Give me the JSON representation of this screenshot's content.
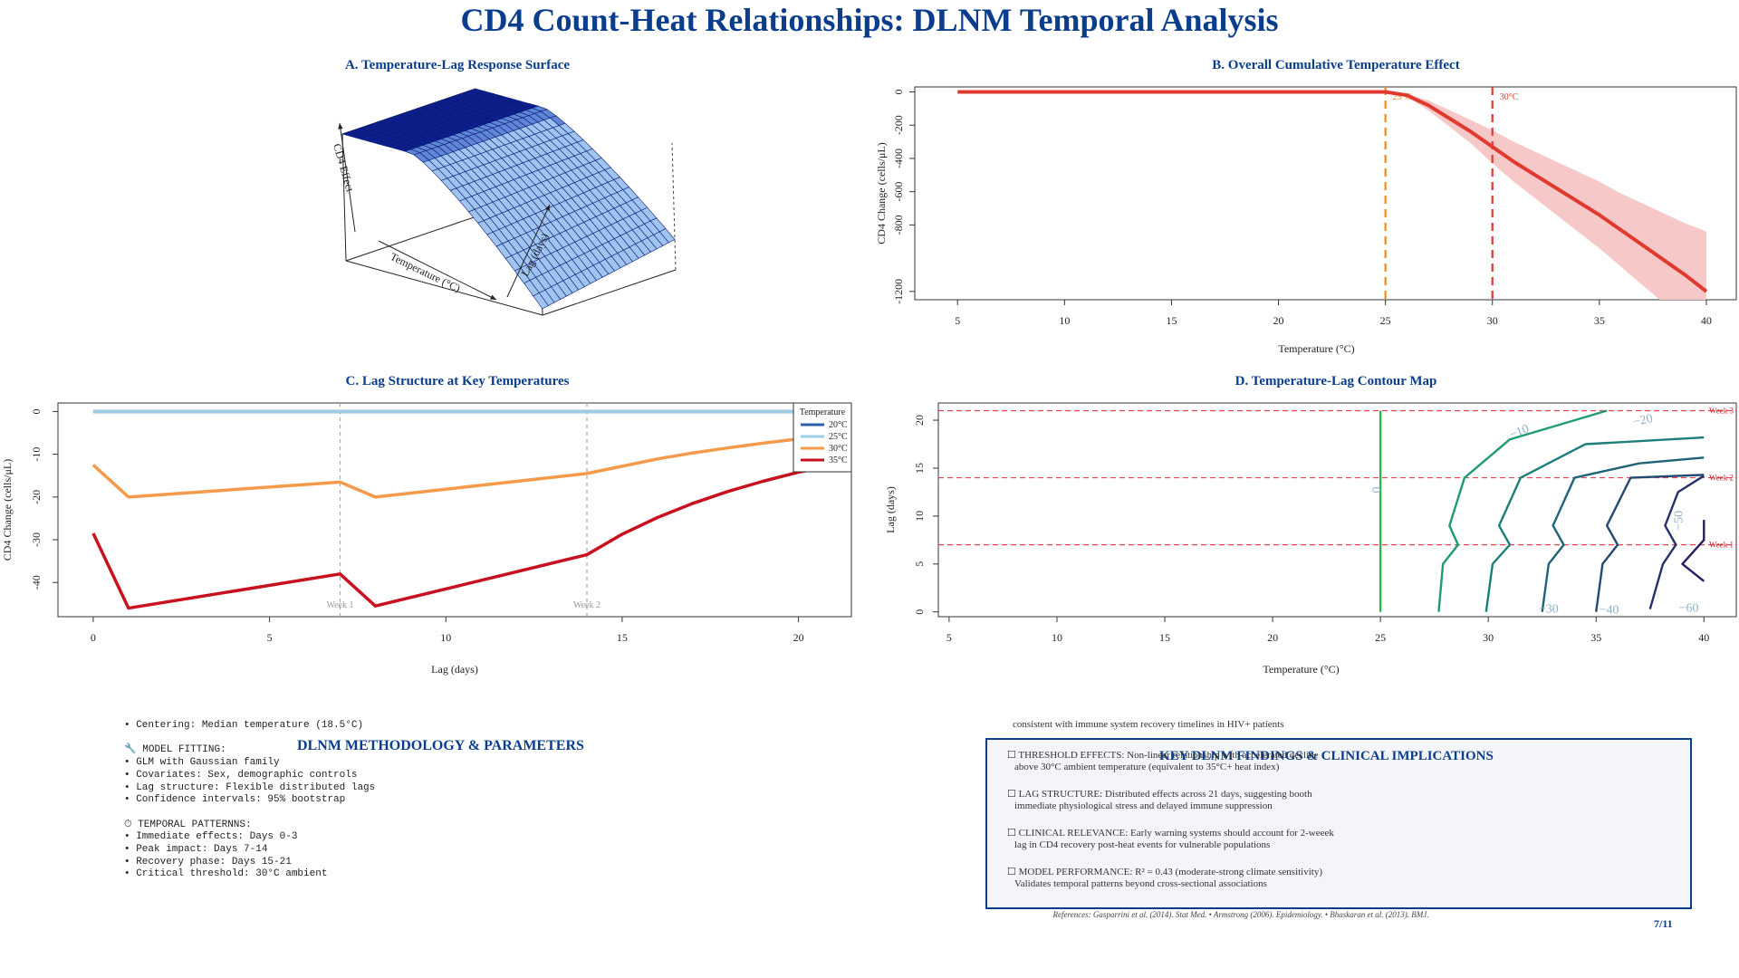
{
  "title": "CD4 Count-Heat Relationships: DLNM Temporal Analysis",
  "colors": {
    "title": "#0a3d8c",
    "cumulative_line": "#e03a2f",
    "cumulative_band": "#f6c8c8",
    "threshold_25": "#f08a1c",
    "threshold_30": "#e03a2f",
    "t20": "#2c5fa8",
    "t25": "#9ecde6",
    "t30": "#f59a4a",
    "t35": "#c8101e"
  },
  "panels": {
    "a": {
      "title": "A. Temperature-Lag Response Surface",
      "xlabel": "Temperature (°C)",
      "ylabel": "Lag (days)",
      "zlabel": "CD4 Effect"
    },
    "b": {
      "title": "B. Overall Cumulative Temperature Effect"
    },
    "c": {
      "title": "C. Lag Structure at Key Temperatures",
      "legend_title": "Temperature"
    },
    "d": {
      "title": "D. Temperature-Lag Contour Map"
    }
  },
  "chart_data": [
    {
      "id": "panel-a",
      "type": "surface",
      "title": "A. Temperature-Lag Response Surface",
      "xlabel": "Temperature (°C)",
      "ylabel": "Lag (days)",
      "zlabel": "CD4 Effect"
    },
    {
      "id": "panel-b",
      "type": "line",
      "title": "B. Overall Cumulative Temperature Effect",
      "xlabel": "Temperature (°C)",
      "ylabel": "CD4 Change (cells/μL)",
      "xlim": [
        5,
        40
      ],
      "ylim": [
        -1250,
        30
      ],
      "xticks": [
        5,
        10,
        15,
        20,
        25,
        30,
        35,
        40
      ],
      "yticks": [
        0,
        -200,
        -400,
        -600,
        -800,
        -1200
      ],
      "x": [
        5,
        10,
        15,
        20,
        25,
        26,
        27,
        28,
        29,
        30,
        31,
        32,
        33,
        34,
        35,
        36,
        37,
        38,
        39,
        40
      ],
      "y": [
        0,
        0,
        0,
        0,
        0,
        -20,
        -80,
        -160,
        -240,
        -330,
        -420,
        -500,
        -580,
        -660,
        -740,
        -830,
        -920,
        -1010,
        -1100,
        -1200
      ],
      "upper": [
        0,
        0,
        0,
        0,
        0,
        -10,
        -50,
        -110,
        -170,
        -230,
        -300,
        -360,
        -420,
        -480,
        -540,
        -610,
        -670,
        -730,
        -790,
        -840
      ],
      "lower": [
        0,
        0,
        0,
        0,
        0,
        -30,
        -110,
        -210,
        -310,
        -430,
        -540,
        -640,
        -740,
        -840,
        -940,
        -1050,
        -1160,
        -1270,
        -1380,
        -1500
      ],
      "vlines": [
        {
          "x": 25,
          "label": "25°C",
          "color": "#f08a1c"
        },
        {
          "x": 30,
          "label": "30°C",
          "color": "#e03a2f"
        }
      ]
    },
    {
      "id": "panel-c",
      "type": "line",
      "title": "C. Lag Structure at Key Temperatures",
      "xlabel": "Lag (days)",
      "ylabel": "CD4 Change (cells/μL)",
      "xlim": [
        -1,
        21.5
      ],
      "ylim": [
        -48,
        2
      ],
      "xticks": [
        0,
        5,
        10,
        15,
        20
      ],
      "yticks": [
        0,
        -10,
        -20,
        -30,
        -40
      ],
      "legend_position": "top-right",
      "vlines": [
        {
          "x": 7,
          "label": "Week 1"
        },
        {
          "x": 14,
          "label": "Week 2"
        }
      ],
      "series": [
        {
          "name": "20°C",
          "color": "#2c5fa8",
          "x": [
            0,
            21
          ],
          "y": [
            0,
            0
          ]
        },
        {
          "name": "25°C",
          "color": "#9ecde6",
          "x": [
            0,
            21
          ],
          "y": [
            0,
            0
          ]
        },
        {
          "name": "30°C",
          "color": "#f59a4a",
          "x": [
            0,
            1,
            7,
            8,
            14,
            15,
            16,
            17,
            18,
            19,
            20,
            21
          ],
          "y": [
            -12.5,
            -20,
            -16.5,
            -20,
            -14.5,
            -12.8,
            -11.1,
            -9.7,
            -8.5,
            -7.4,
            -6.4,
            -5.5
          ]
        },
        {
          "name": "35°C",
          "color": "#c8101e",
          "x": [
            0,
            1,
            7,
            8,
            14,
            15,
            16,
            17,
            18,
            19,
            20,
            21
          ],
          "y": [
            -28.5,
            -46,
            -38,
            -45.5,
            -33.5,
            -28.7,
            -24.8,
            -21.5,
            -18.7,
            -16.3,
            -14.2,
            -12.6
          ]
        }
      ]
    },
    {
      "id": "panel-d",
      "type": "contour",
      "title": "D. Temperature-Lag Contour Map",
      "xlabel": "Temperature (°C)",
      "ylabel": "Lag (days)",
      "xlim": [
        4.5,
        41.5
      ],
      "ylim": [
        -0.5,
        21.8
      ],
      "xticks": [
        5,
        10,
        15,
        20,
        25,
        30,
        35,
        40
      ],
      "yticks": [
        0,
        5,
        10,
        15,
        20
      ],
      "hlines": [
        {
          "y": 7,
          "label": "Week 1"
        },
        {
          "y": 14,
          "label": "Week 2"
        },
        {
          "y": 21,
          "label": "Week 3"
        }
      ],
      "contours": [
        {
          "level": 0,
          "label": "0",
          "color": "#2fb05a",
          "points": [
            [
              25,
              0
            ],
            [
              25,
              21
            ]
          ]
        },
        {
          "level": -10,
          "label": "−10",
          "color": "#1f9a72",
          "points": [
            [
              27.7,
              0
            ],
            [
              27.9,
              5
            ],
            [
              28.6,
              7
            ],
            [
              28.2,
              9
            ],
            [
              28.9,
              14
            ],
            [
              31,
              18
            ],
            [
              35.5,
              21
            ]
          ]
        },
        {
          "level": -20,
          "label": "−20",
          "color": "#1c7f7a",
          "points": [
            [
              29.9,
              0
            ],
            [
              30.2,
              5
            ],
            [
              31,
              7
            ],
            [
              30.5,
              9
            ],
            [
              31.5,
              14
            ],
            [
              34.5,
              17.5
            ],
            [
              40,
              18.2
            ]
          ]
        },
        {
          "level": -30,
          "label": "−30",
          "color": "#1e6478",
          "points": [
            [
              32.5,
              0
            ],
            [
              32.8,
              5
            ],
            [
              33.5,
              7
            ],
            [
              33,
              9
            ],
            [
              34,
              14
            ],
            [
              37,
              15.5
            ],
            [
              40,
              16.1
            ]
          ]
        },
        {
          "level": -40,
          "label": "−40",
          "color": "#234a72",
          "points": [
            [
              35,
              0
            ],
            [
              35.3,
              5
            ],
            [
              36,
              7
            ],
            [
              35.5,
              9
            ],
            [
              36.6,
              14
            ],
            [
              40,
              14.3
            ]
          ]
        },
        {
          "level": -50,
          "label": "−50",
          "color": "#28306a",
          "points": [
            [
              37.5,
              0.3
            ],
            [
              38.1,
              5
            ],
            [
              38.7,
              7
            ],
            [
              38.2,
              9
            ],
            [
              38.8,
              12.5
            ],
            [
              40,
              14.2
            ]
          ]
        },
        {
          "level": -60,
          "label": "−60",
          "color": "#2a1c5e",
          "points": [
            [
              40,
              3.2
            ],
            [
              39,
              5
            ],
            [
              40,
              7.5
            ],
            [
              40,
              8.3
            ],
            [
              40,
              9.6
            ]
          ]
        }
      ]
    }
  ],
  "methodology": {
    "heading": "DLNM METHODOLOGY & PARAMETERS",
    "lines": [
      "• Centering: Median temperature (18.5°C)",
      "",
      "🔧 MODEL FITTING:",
      "• GLM with Gaussian family",
      "• Covariates: Sex, demographic controls",
      "• Lag structure: Flexible distributed lags",
      "• Confidence intervals: 95% bootstrap",
      "",
      "⏱ TEMPORAL PATTERNNS:",
      "• Immediate effects: Days 0-3",
      "• Peak impact: Days 7-14",
      "• Recovery phase: Days 15-21",
      "• Critical threshold: 30°C ambient"
    ]
  },
  "findings": {
    "heading": "KEY DLNM FINDINGS & CLINICAL IMPLICATIONS",
    "pre_line": "consistent with immune system recovery timelines in HIV+ patients",
    "items": [
      {
        "l1": "☐ THRESHOLD EFFECTS: Non-linear relationship with accelerated decline",
        "l2": "above 30°C ambient temperature (equivalent to 35°C+ heat index)"
      },
      {
        "l1": "☐ LAG STRUCTURE: Distributed effects across 21 days, suggesting booth",
        "l2": "immediate physiological stress and delayed immune suppression"
      },
      {
        "l1": "☐ CLINICAL RELEVANCE: Early warning systems should account for 2-weeek",
        "l2": "lag in CD4 recovery post-heat events for vulnerable populations"
      },
      {
        "l1": "☐ MODEL PERFORMANCE: R² = 0.43 (moderate-strong climate sensitivity)",
        "l2": "Validates temporal patterns beyond cross-sectional associations"
      }
    ]
  },
  "references": "References: Gasparrini et al. (2014). Stat Med. • Armstrong (2006). Epidemiology. • Bhaskaran et al. (2013). BMJ.",
  "page_number": "7/11"
}
